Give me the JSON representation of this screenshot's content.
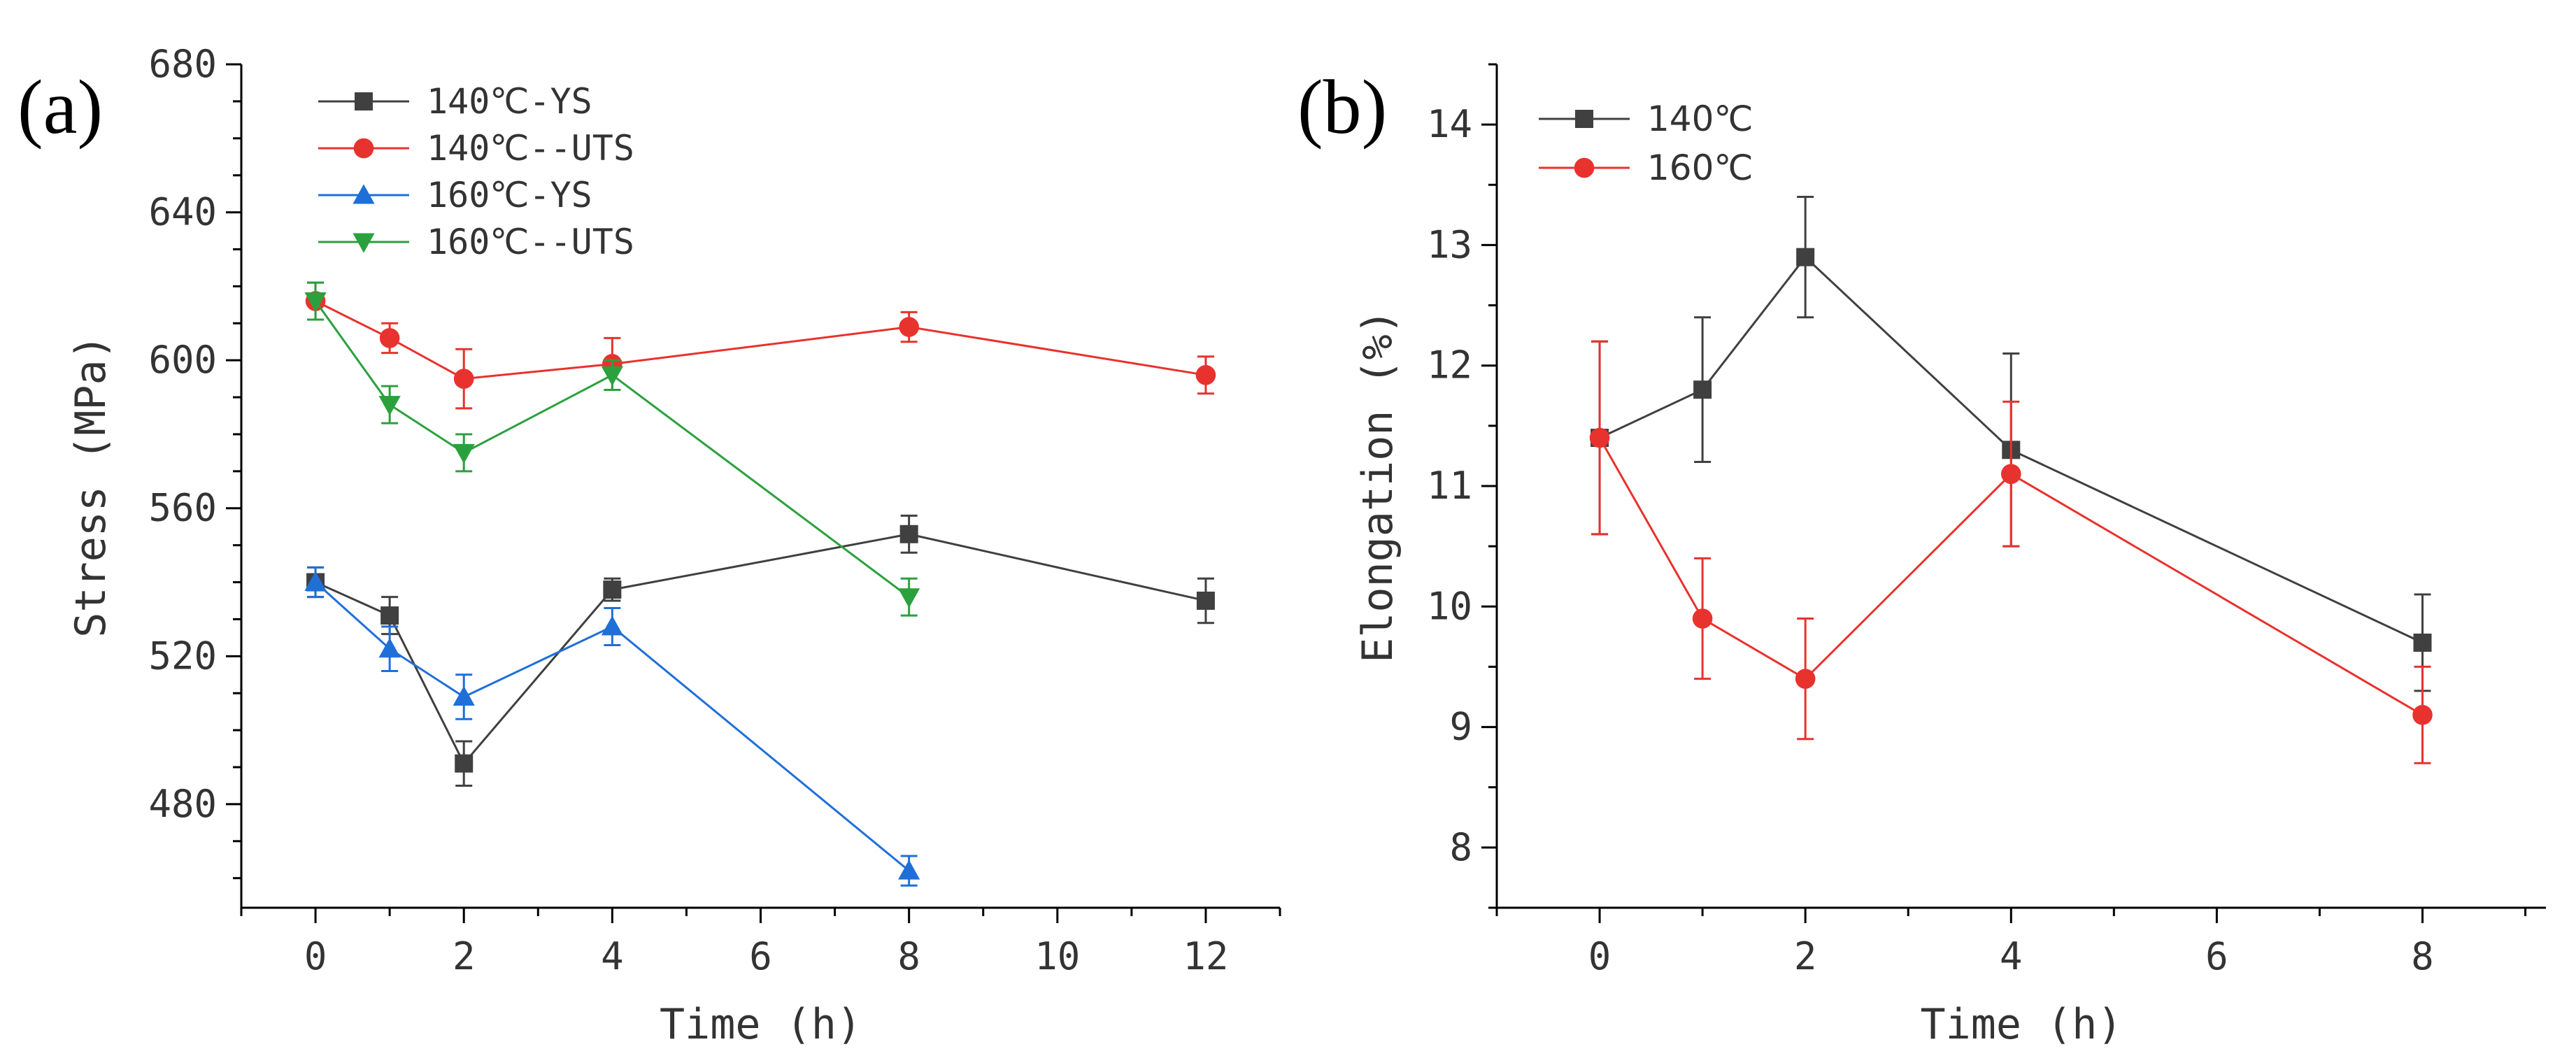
{
  "chart_data": [
    {
      "panel": "(a)",
      "type": "line",
      "xlabel": "Time (h)",
      "ylabel": "Stress (MPa)",
      "xlim": [
        -1,
        13
      ],
      "ylim": [
        452,
        680
      ],
      "xticks": [
        0,
        2,
        4,
        6,
        8,
        10,
        12
      ],
      "yticks": [
        480,
        520,
        560,
        600,
        640,
        680
      ],
      "legend_position": "top-left",
      "series": [
        {
          "name": "140℃-YS",
          "color": "#404040",
          "marker": "square",
          "x": [
            0,
            1,
            2,
            4,
            8,
            12
          ],
          "values": [
            540,
            531,
            491,
            538,
            553,
            535
          ],
          "errors": [
            4,
            5,
            6,
            3,
            5,
            6
          ]
        },
        {
          "name": "140℃--UTS",
          "color": "#e8322e",
          "marker": "circle",
          "x": [
            0,
            1,
            2,
            4,
            8,
            12
          ],
          "values": [
            616,
            606,
            595,
            599,
            609,
            596
          ],
          "errors": [
            5,
            4,
            8,
            7,
            4,
            5
          ]
        },
        {
          "name": "160℃-YS",
          "color": "#1f6fd8",
          "marker": "triangle-up",
          "x": [
            0,
            1,
            2,
            4,
            8
          ],
          "values": [
            540,
            522,
            509,
            528,
            462
          ],
          "errors": [
            4,
            6,
            6,
            5,
            4
          ]
        },
        {
          "name": "160℃--UTS",
          "color": "#2aa13d",
          "marker": "triangle-down",
          "x": [
            0,
            1,
            2,
            4,
            8
          ],
          "values": [
            616,
            588,
            575,
            596,
            536
          ],
          "errors": [
            5,
            5,
            5,
            4,
            5
          ]
        }
      ]
    },
    {
      "panel": "(b)",
      "type": "line",
      "xlabel": "Time (h)",
      "ylabel": "Elongation (%)",
      "xlim": [
        -1,
        9.2
      ],
      "ylim": [
        7.5,
        14.5
      ],
      "xticks": [
        0,
        2,
        4,
        6,
        8
      ],
      "yticks": [
        8,
        9,
        10,
        11,
        12,
        13,
        14
      ],
      "legend_position": "top-left",
      "series": [
        {
          "name": "140℃",
          "color": "#404040",
          "marker": "square",
          "x": [
            0,
            1,
            2,
            4,
            8
          ],
          "values": [
            11.4,
            11.8,
            12.9,
            11.3,
            9.7
          ],
          "errors": [
            0.8,
            0.6,
            0.5,
            0.8,
            0.4
          ]
        },
        {
          "name": "160℃",
          "color": "#e8322e",
          "marker": "circle",
          "x": [
            0,
            1,
            2,
            4,
            8
          ],
          "values": [
            11.4,
            9.9,
            9.4,
            11.1,
            9.1
          ],
          "errors": [
            0.8,
            0.5,
            0.5,
            0.6,
            0.4
          ]
        }
      ]
    }
  ]
}
